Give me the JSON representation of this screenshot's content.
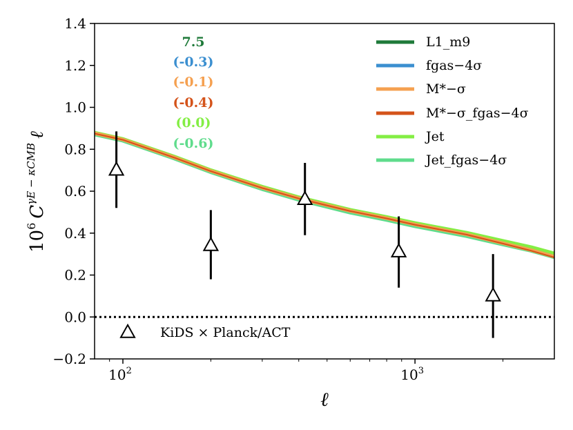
{
  "chart_data": {
    "type": "line",
    "xlabel": "ℓ",
    "ylabel_parts": {
      "prefix": "10",
      "exp": "6",
      "C": "C",
      "sub": "ℓ",
      "sup": "γE − κCMB",
      "suffix": "ℓ"
    },
    "xscale": "log",
    "xlim": [
      80,
      3000
    ],
    "ylim": [
      -0.2,
      1.4
    ],
    "yticks": [
      -0.2,
      0.0,
      0.2,
      0.4,
      0.6,
      0.8,
      1.0,
      1.2,
      1.4
    ],
    "ytick_labels": [
      "−0.2",
      "0.0",
      "0.2",
      "0.4",
      "0.6",
      "0.8",
      "1.0",
      "1.2",
      "1.4"
    ],
    "xticks": [
      {
        "value": 100,
        "base": "10",
        "exp": "2"
      },
      {
        "value": 1000,
        "base": "10",
        "exp": "3"
      }
    ],
    "zero_line": {
      "y": 0.0,
      "style": "dotted"
    },
    "series": [
      {
        "name": "L1_m9",
        "color": "#1f7a3a",
        "x": [
          80,
          100,
          150,
          200,
          300,
          400,
          600,
          800,
          1000,
          1500,
          2000,
          2500,
          3000
        ],
        "y": [
          0.875,
          0.845,
          0.76,
          0.695,
          0.615,
          0.565,
          0.505,
          0.47,
          0.44,
          0.395,
          0.355,
          0.325,
          0.295
        ]
      },
      {
        "name": "fgas−4σ",
        "color": "#3b8fd0",
        "x": [
          80,
          100,
          150,
          200,
          300,
          400,
          600,
          800,
          1000,
          1500,
          2000,
          2500,
          3000
        ],
        "y": [
          0.874,
          0.844,
          0.759,
          0.694,
          0.614,
          0.563,
          0.503,
          0.468,
          0.438,
          0.392,
          0.352,
          0.322,
          0.292
        ]
      },
      {
        "name": "M*−σ",
        "color": "#f5a050",
        "x": [
          80,
          100,
          150,
          200,
          300,
          400,
          600,
          800,
          1000,
          1500,
          2000,
          2500,
          3000
        ],
        "y": [
          0.876,
          0.846,
          0.761,
          0.696,
          0.616,
          0.566,
          0.506,
          0.471,
          0.441,
          0.394,
          0.352,
          0.319,
          0.288
        ]
      },
      {
        "name": "M*−σ_fgas−4σ",
        "color": "#d4531a",
        "x": [
          80,
          100,
          150,
          200,
          300,
          400,
          600,
          800,
          1000,
          1500,
          2000,
          2500,
          3000
        ],
        "y": [
          0.875,
          0.845,
          0.76,
          0.695,
          0.615,
          0.565,
          0.505,
          0.47,
          0.44,
          0.393,
          0.35,
          0.316,
          0.284
        ]
      },
      {
        "name": "Jet",
        "color": "#84ee44",
        "x": [
          80,
          100,
          150,
          200,
          300,
          400,
          600,
          800,
          1000,
          1500,
          2000,
          2500,
          3000
        ],
        "y": [
          0.876,
          0.846,
          0.762,
          0.697,
          0.618,
          0.568,
          0.508,
          0.474,
          0.445,
          0.399,
          0.36,
          0.33,
          0.3
        ]
      },
      {
        "name": "Jet_fgas−4σ",
        "color": "#5fdc8c",
        "x": [
          80,
          100,
          150,
          200,
          300,
          400,
          600,
          800,
          1000,
          1500,
          2000,
          2500,
          3000
        ],
        "y": [
          0.872,
          0.842,
          0.757,
          0.692,
          0.611,
          0.56,
          0.499,
          0.464,
          0.434,
          0.387,
          0.347,
          0.317,
          0.286
        ]
      }
    ],
    "observations": {
      "name": "KiDS × Planck/ACT",
      "marker": "open-triangle",
      "points": [
        {
          "x": 95,
          "y": 0.7,
          "yerr_low": 0.52,
          "yerr_high": 0.885
        },
        {
          "x": 200,
          "y": 0.34,
          "yerr_low": 0.18,
          "yerr_high": 0.51
        },
        {
          "x": 420,
          "y": 0.56,
          "yerr_low": 0.39,
          "yerr_high": 0.735
        },
        {
          "x": 880,
          "y": 0.31,
          "yerr_low": 0.14,
          "yerr_high": 0.48
        },
        {
          "x": 1850,
          "y": 0.1,
          "yerr_low": -0.1,
          "yerr_high": 0.3
        }
      ]
    },
    "annotations": [
      {
        "text": "7.5",
        "color": "#1f7a3a"
      },
      {
        "text": "(-0.3)",
        "color": "#3b8fd0"
      },
      {
        "text": "(-0.1)",
        "color": "#f5a050"
      },
      {
        "text": "(-0.4)",
        "color": "#d4531a"
      },
      {
        "text": "(0.0)",
        "color": "#84ee44"
      },
      {
        "text": "(-0.6)",
        "color": "#5fdc8c"
      }
    ],
    "legend_position": "top-right"
  }
}
